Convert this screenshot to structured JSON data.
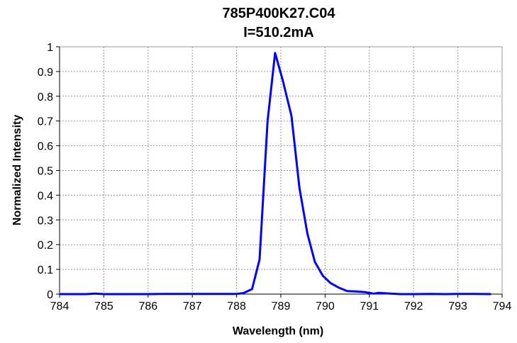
{
  "chart_data": {
    "type": "line",
    "title": "785P400K27.C04",
    "subtitle": "I=510.2mA",
    "xlabel": "Wavelength (nm)",
    "ylabel": "Normalized Intensity",
    "xlim": [
      784,
      794
    ],
    "ylim": [
      0,
      1
    ],
    "xticks": [
      "784",
      "785",
      "786",
      "787",
      "788",
      "789",
      "790",
      "791",
      "792",
      "793",
      "794"
    ],
    "yticks": [
      "0",
      "0.1",
      "0.2",
      "0.3",
      "0.4",
      "0.5",
      "0.6",
      "0.7",
      "0.8",
      "0.9",
      "1"
    ],
    "grid": true,
    "legend": "none",
    "series_color": "#0000ff",
    "series": [
      {
        "x": [
          784.0,
          784.3,
          784.6,
          784.8,
          785.0,
          785.3,
          785.6,
          786.0,
          786.3,
          786.6,
          787.0,
          787.4,
          787.8,
          788.0,
          788.15,
          788.35,
          788.52,
          788.7,
          788.87,
          789.05,
          789.24,
          789.42,
          789.6,
          789.77,
          789.95,
          790.12,
          790.3,
          790.5,
          790.7,
          790.9,
          791.1,
          791.2,
          791.4,
          791.7,
          792.0,
          792.4,
          792.7,
          793.0,
          793.4,
          793.75
        ],
        "y": [
          0.0,
          0.0,
          0.0,
          0.002,
          0.0,
          0.0,
          0.0,
          0.0,
          0.001,
          0.001,
          0.001,
          0.001,
          0.001,
          0.001,
          0.004,
          0.02,
          0.14,
          0.7,
          0.975,
          0.86,
          0.72,
          0.43,
          0.245,
          0.13,
          0.074,
          0.045,
          0.027,
          0.012,
          0.011,
          0.008,
          0.002,
          0.005,
          0.003,
          0.0,
          0.0,
          0.001,
          0.0,
          0.001,
          0.001,
          0.0
        ]
      }
    ]
  }
}
